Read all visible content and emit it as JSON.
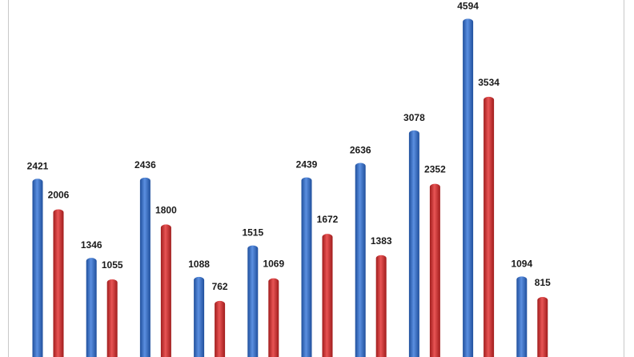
{
  "chart_data": {
    "type": "bar",
    "categories": [
      "",
      "",
      "",
      "",
      "",
      "",
      "",
      "",
      "",
      ""
    ],
    "series": [
      {
        "color": "#3b6fc4",
        "values": [
          2421,
          1346,
          2436,
          1088,
          1515,
          2439,
          2636,
          3078,
          4594,
          1094
        ]
      },
      {
        "color": "#cf2f2f",
        "values": [
          2006,
          1055,
          1800,
          762,
          1069,
          1672,
          1383,
          2352,
          3534,
          815
        ]
      }
    ],
    "title": "",
    "xlabel": "",
    "ylabel": "",
    "ylim": [
      0,
      5000
    ],
    "grid": false,
    "legend": "none"
  }
}
